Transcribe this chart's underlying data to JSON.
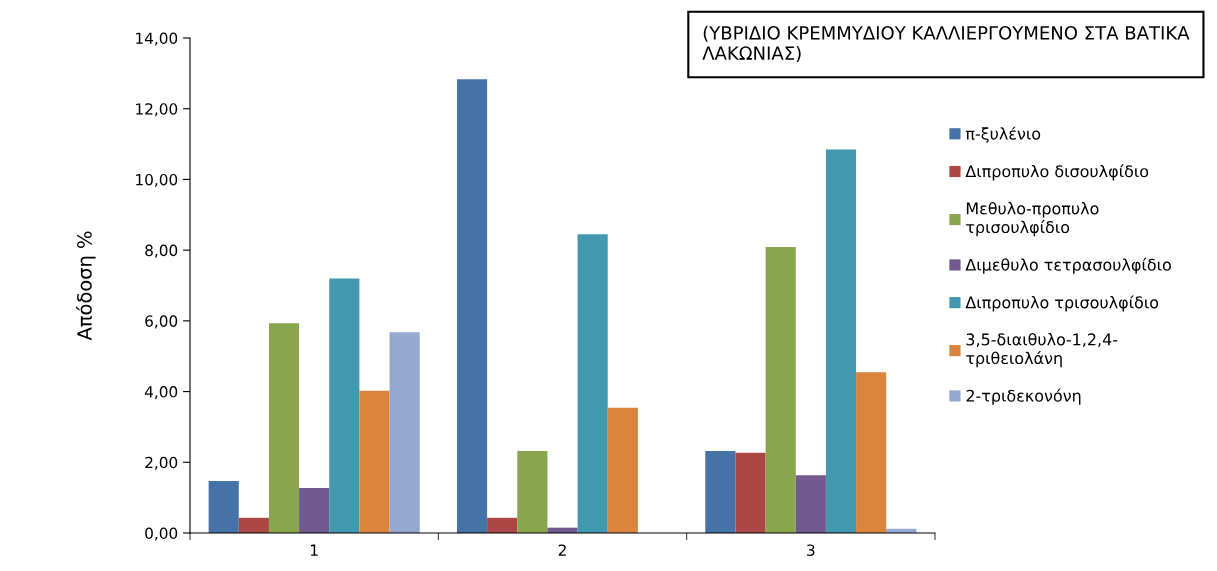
{
  "chart_data": {
    "type": "bar",
    "title": "(ΥΒΡΙΔΙΟ ΚΡΕΜΜΥΔΙΟΥ ΚΑΛΛΙΕΡΓΟΥΜΕΝΟ ΣΤΑ ΒΑΤΙΚΑ ΛΑΚΩΝΙΑΣ)",
    "ylabel": "Απόδοση %",
    "categories": [
      "1",
      "2",
      "3"
    ],
    "series": [
      {
        "name": "π-ξυλένιο",
        "color": "#4572a7",
        "values": [
          1.47,
          12.83,
          2.32
        ]
      },
      {
        "name": "Διπροπυλο δισουλφίδιο",
        "color": "#aa4643",
        "values": [
          0.43,
          0.43,
          2.27
        ]
      },
      {
        "name": "Μεθυλο-προπυλο\nτρισουλφίδιο",
        "color": "#89a54e",
        "values": [
          5.93,
          2.32,
          8.09
        ]
      },
      {
        "name": "Διμεθυλο τετρασουλφίδιο",
        "color": "#71588f",
        "values": [
          1.27,
          0.15,
          1.63
        ]
      },
      {
        "name": "Διπροπυλο τρισουλφίδιο",
        "color": "#4198af",
        "values": [
          7.2,
          8.45,
          10.85
        ]
      },
      {
        "name": "3,5-διαιθυλο-1,2,4-\nτριθειολάνη",
        "color": "#db843d",
        "values": [
          4.02,
          3.54,
          4.55
        ]
      },
      {
        "name": "2-τριδεκονόνη",
        "color": "#93a9cf",
        "values": [
          5.68,
          0,
          0.12
        ]
      }
    ],
    "ylim": [
      0,
      14
    ],
    "yticks": [
      {
        "value": 0,
        "label": "0,00"
      },
      {
        "value": 2,
        "label": "2,00"
      },
      {
        "value": 4,
        "label": "4,00"
      },
      {
        "value": 6,
        "label": "6,00"
      },
      {
        "value": 8,
        "label": "8,00"
      },
      {
        "value": 10,
        "label": "10,00"
      },
      {
        "value": 12,
        "label": "12,00"
      },
      {
        "value": 14,
        "label": "14,00"
      }
    ],
    "grid": false,
    "legend": "right"
  }
}
